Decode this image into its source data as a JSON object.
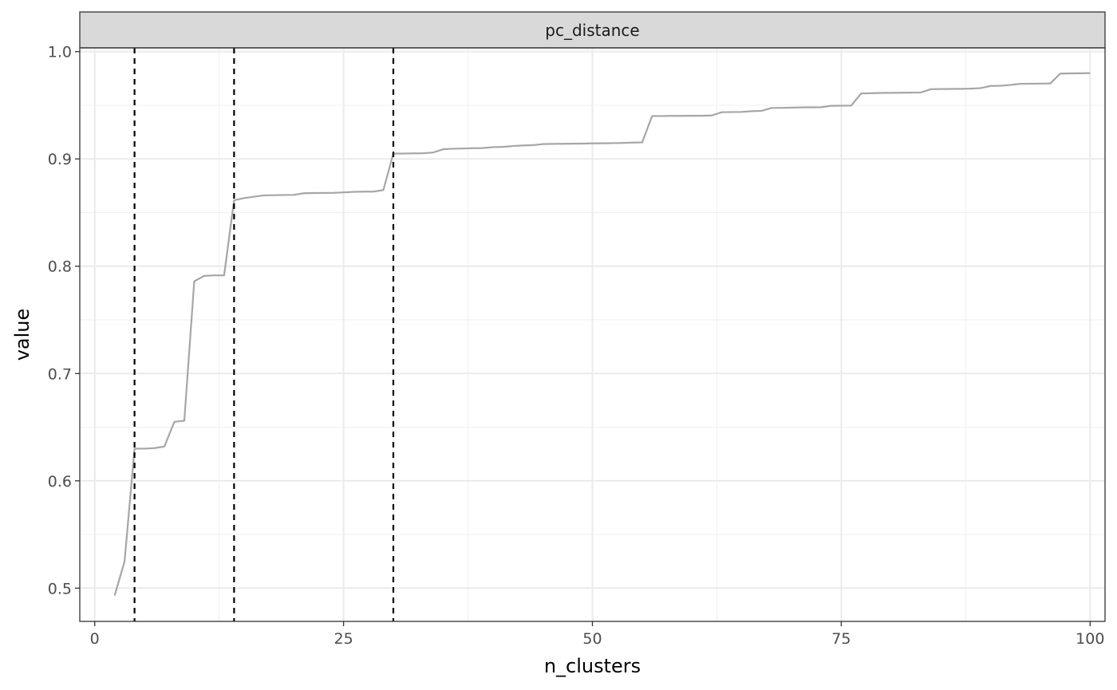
{
  "chart_data": {
    "type": "line",
    "facet_label": "pc_distance",
    "xlabel": "n_clusters",
    "ylabel": "value",
    "xlim": [
      -1.5,
      101.5
    ],
    "ylim": [
      0.469,
      1.0035
    ],
    "x_ticks": [
      0,
      25,
      50,
      75,
      100
    ],
    "y_ticks": [
      0.5,
      0.6,
      0.7,
      0.8,
      0.9,
      1.0
    ],
    "y_tick_labels": [
      "0.5",
      "0.6",
      "0.7",
      "0.8",
      "0.9",
      "1.0"
    ],
    "grid": true,
    "series": [
      {
        "color": "#a6a6a6",
        "x": [
          2,
          3,
          4,
          5,
          6,
          7,
          8,
          9,
          10,
          11,
          12,
          13,
          14,
          15,
          16,
          17,
          18,
          19,
          20,
          21,
          22,
          23,
          24,
          25,
          26,
          27,
          28,
          29,
          30,
          31,
          32,
          33,
          34,
          35,
          36,
          37,
          38,
          39,
          40,
          41,
          42,
          43,
          44,
          45,
          46,
          47,
          48,
          49,
          50,
          51,
          52,
          53,
          54,
          55,
          56,
          57,
          58,
          59,
          60,
          61,
          62,
          63,
          64,
          65,
          66,
          67,
          68,
          69,
          70,
          71,
          72,
          73,
          74,
          75,
          76,
          77,
          78,
          79,
          80,
          81,
          82,
          83,
          84,
          85,
          86,
          87,
          88,
          89,
          90,
          91,
          92,
          93,
          94,
          95,
          96,
          97,
          98,
          99,
          100
        ],
        "y": [
          0.493,
          0.525,
          0.63,
          0.63,
          0.6305,
          0.632,
          0.655,
          0.656,
          0.786,
          0.791,
          0.7915,
          0.7915,
          0.8615,
          0.8635,
          0.8648,
          0.866,
          0.8662,
          0.8664,
          0.8665,
          0.868,
          0.8682,
          0.8683,
          0.8684,
          0.8688,
          0.8693,
          0.8695,
          0.8695,
          0.871,
          0.905,
          0.905,
          0.9052,
          0.9053,
          0.906,
          0.909,
          0.9095,
          0.9097,
          0.91,
          0.9101,
          0.911,
          0.9112,
          0.912,
          0.9125,
          0.9128,
          0.9138,
          0.914,
          0.9141,
          0.9142,
          0.9143,
          0.9145,
          0.9146,
          0.9147,
          0.9149,
          0.9152,
          0.9154,
          0.94,
          0.94,
          0.9401,
          0.9401,
          0.9402,
          0.9402,
          0.9405,
          0.9435,
          0.9437,
          0.9438,
          0.9445,
          0.9448,
          0.9475,
          0.9476,
          0.9478,
          0.948,
          0.9481,
          0.9482,
          0.9495,
          0.9496,
          0.9497,
          0.961,
          0.9612,
          0.9615,
          0.9616,
          0.9617,
          0.9618,
          0.9619,
          0.965,
          0.9651,
          0.9652,
          0.9653,
          0.9655,
          0.966,
          0.968,
          0.9682,
          0.969,
          0.97,
          0.9701,
          0.9702,
          0.9703,
          0.9795,
          0.9797,
          0.9798,
          0.98
        ]
      }
    ],
    "vlines": [
      {
        "x": 4,
        "style": "dashed",
        "color": "#000000"
      },
      {
        "x": 14,
        "style": "dashed",
        "color": "#000000"
      },
      {
        "x": 30,
        "style": "dashed",
        "color": "#000000"
      }
    ]
  }
}
